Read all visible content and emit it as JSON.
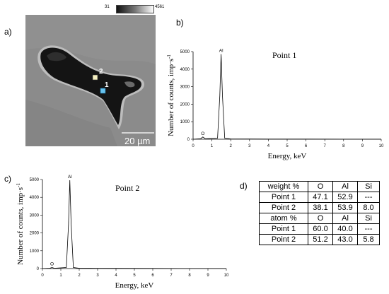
{
  "panels": {
    "a": "a)",
    "b": "b)",
    "c": "c)",
    "d": "d)"
  },
  "micrograph": {
    "colorbar": {
      "min": "31",
      "max": "4561"
    },
    "scale_bar": "20 µm",
    "point_labels": [
      "2",
      "1"
    ]
  },
  "chart_data": [
    {
      "type": "line",
      "title": "Point 1",
      "xlabel": "Energy, keV",
      "ylabel": "Number of counts, imp·s",
      "ylabel_sup": "-1",
      "xlim": [
        0,
        10
      ],
      "ylim": [
        0,
        5000
      ],
      "xticks": [
        "0",
        "1",
        "2",
        "3",
        "4",
        "5",
        "6",
        "7",
        "8",
        "9",
        "10"
      ],
      "yticks": [
        "0",
        "1000",
        "2000",
        "3000",
        "4000",
        "5000"
      ],
      "x": [
        0,
        0.4,
        0.52,
        0.65,
        1.3,
        1.42,
        1.49,
        1.56,
        1.68,
        2.0,
        3.0,
        4.0,
        6.0,
        8.0,
        10.0
      ],
      "y": [
        0,
        30,
        130,
        30,
        60,
        2500,
        4860,
        2500,
        60,
        20,
        15,
        10,
        8,
        5,
        5
      ],
      "peak_labels": [
        {
          "text": "Al",
          "x": 1.49,
          "y": 4860
        },
        {
          "text": "O",
          "x": 0.52,
          "y": 130
        }
      ]
    },
    {
      "type": "line",
      "title": "Point 2",
      "xlabel": "Energy, keV",
      "ylabel": "Number of counts, imp·s",
      "ylabel_sup": "-1",
      "xlim": [
        0,
        10
      ],
      "ylim": [
        0,
        5000
      ],
      "xticks": [
        "0",
        "1",
        "2",
        "3",
        "4",
        "5",
        "6",
        "7",
        "8",
        "9",
        "10"
      ],
      "yticks": [
        "0",
        "1000",
        "2000",
        "3000",
        "4000",
        "5000"
      ],
      "x": [
        0,
        0.4,
        0.52,
        0.65,
        1.3,
        1.42,
        1.49,
        1.56,
        1.68,
        2.0,
        3.0,
        4.0,
        6.0,
        8.0,
        10.0
      ],
      "y": [
        0,
        20,
        60,
        20,
        60,
        2500,
        4960,
        2500,
        60,
        20,
        15,
        10,
        8,
        5,
        5
      ],
      "peak_labels": [
        {
          "text": "Al",
          "x": 1.49,
          "y": 4960
        },
        {
          "text": "O",
          "x": 0.52,
          "y": 60
        }
      ]
    },
    {
      "type": "table",
      "rows": [
        [
          "weight %",
          "O",
          "Al",
          "Si"
        ],
        [
          "Point 1",
          "47.1",
          "52.9",
          "---"
        ],
        [
          "Point 2",
          "38.1",
          "53.9",
          "8.0"
        ],
        [
          "atom %",
          "O",
          "Al",
          "Si"
        ],
        [
          "Point 1",
          "60.0",
          "40.0",
          "---"
        ],
        [
          "Point 2",
          "51.2",
          "43.0",
          "5.8"
        ]
      ]
    }
  ]
}
